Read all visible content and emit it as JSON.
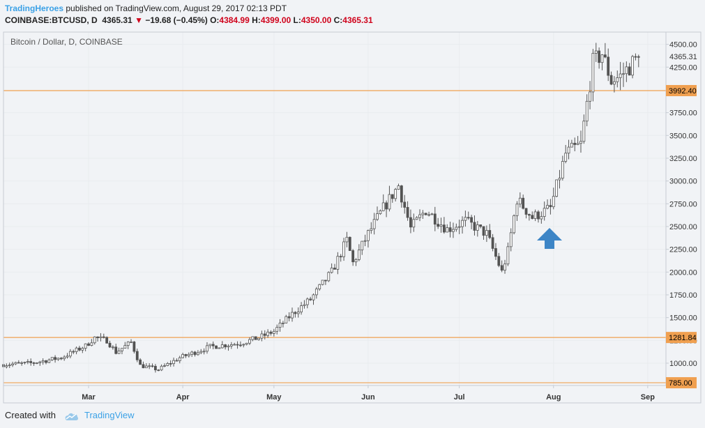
{
  "header": {
    "author": "TradingHeroes",
    "published_text": " published on TradingView.com, August 29, 2017 02:13 PDT",
    "symbol": "COINBASE:BTCUSD, D",
    "last": "4365.31",
    "change": "−19.68 (−0.45%)",
    "o_label": "O:",
    "o": "4384.99",
    "h_label": "H:",
    "h": "4399.00",
    "l_label": "L:",
    "l": "4350.00",
    "c_label": "C:",
    "c": "4365.31"
  },
  "footer": {
    "created_with": "Created with",
    "brand": "TradingView"
  },
  "colors": {
    "candle": "#535353",
    "level_line": "#f0a050",
    "arrow": "#3d85c6",
    "grid": "#e9ecef",
    "author": "#3ba1e6",
    "down": "#d0021b"
  },
  "chart_data": {
    "type": "candlestick",
    "title": "Bitcoin / Dollar, D, COINBASE",
    "ylim": [
      755,
      4635
    ],
    "y_ticks": [
      1000,
      1250,
      1500,
      1750,
      2000,
      2250,
      2500,
      2750,
      3000,
      3250,
      3500,
      3750,
      4250,
      4500
    ],
    "y_tick_labels": [
      "1000.00",
      "1250.00",
      "1500.00",
      "1750.00",
      "2000.00",
      "2250.00",
      "2500.00",
      "2750.00",
      "3000.00",
      "3250.00",
      "3500.00",
      "3750.00",
      "4250.00",
      "4500.00"
    ],
    "x_range": [
      "2017-02-01",
      "2017-09-07"
    ],
    "x_ticks": [
      {
        "date": "2017-03-01",
        "label": "Mar"
      },
      {
        "date": "2017-04-01",
        "label": "Apr"
      },
      {
        "date": "2017-05-01",
        "label": "May"
      },
      {
        "date": "2017-06-01",
        "label": "Jun"
      },
      {
        "date": "2017-07-01",
        "label": "Jul"
      },
      {
        "date": "2017-08-01",
        "label": "Aug"
      },
      {
        "date": "2017-09-01",
        "label": "Sep"
      }
    ],
    "horizontal_levels": [
      {
        "value": 3992.4,
        "label": "3992.40"
      },
      {
        "value": 1281.84,
        "label": "1281.84"
      },
      {
        "value": 785.0,
        "label": "785.00"
      }
    ],
    "last_price": {
      "value": 4365.31,
      "label": "4365.31"
    },
    "annotation": {
      "type": "arrow-up",
      "date": "2017-07-31",
      "value": 2350
    },
    "closes": [
      {
        "date": "2017-02-01",
        "close": 985
      },
      {
        "date": "2017-02-10",
        "close": 1000
      },
      {
        "date": "2017-02-20",
        "close": 1060
      },
      {
        "date": "2017-02-28",
        "close": 1190
      },
      {
        "date": "2017-03-03",
        "close": 1280
      },
      {
        "date": "2017-03-07",
        "close": 1250
      },
      {
        "date": "2017-03-10",
        "close": 1120
      },
      {
        "date": "2017-03-15",
        "close": 1230
      },
      {
        "date": "2017-03-18",
        "close": 975
      },
      {
        "date": "2017-03-24",
        "close": 930
      },
      {
        "date": "2017-03-31",
        "close": 1060
      },
      {
        "date": "2017-04-10",
        "close": 1180
      },
      {
        "date": "2017-04-20",
        "close": 1220
      },
      {
        "date": "2017-04-26",
        "close": 1280
      },
      {
        "date": "2017-05-01",
        "close": 1350
      },
      {
        "date": "2017-05-07",
        "close": 1540
      },
      {
        "date": "2017-05-13",
        "close": 1700
      },
      {
        "date": "2017-05-20",
        "close": 2000
      },
      {
        "date": "2017-05-25",
        "close": 2350
      },
      {
        "date": "2017-05-27",
        "close": 2100
      },
      {
        "date": "2017-06-01",
        "close": 2420
      },
      {
        "date": "2017-06-06",
        "close": 2700
      },
      {
        "date": "2017-06-11",
        "close": 2950
      },
      {
        "date": "2017-06-15",
        "close": 2480
      },
      {
        "date": "2017-06-20",
        "close": 2680
      },
      {
        "date": "2017-06-27",
        "close": 2470
      },
      {
        "date": "2017-07-03",
        "close": 2560
      },
      {
        "date": "2017-07-10",
        "close": 2420
      },
      {
        "date": "2017-07-15",
        "close": 2000
      },
      {
        "date": "2017-07-17",
        "close": 2230
      },
      {
        "date": "2017-07-20",
        "close": 2800
      },
      {
        "date": "2017-07-25",
        "close": 2600
      },
      {
        "date": "2017-07-31",
        "close": 2700
      },
      {
        "date": "2017-08-05",
        "close": 3300
      },
      {
        "date": "2017-08-10",
        "close": 3400
      },
      {
        "date": "2017-08-14",
        "close": 4300
      },
      {
        "date": "2017-08-17",
        "close": 4400
      },
      {
        "date": "2017-08-20",
        "close": 4100
      },
      {
        "date": "2017-08-23",
        "close": 4150
      },
      {
        "date": "2017-08-29",
        "close": 4365.31
      }
    ]
  }
}
